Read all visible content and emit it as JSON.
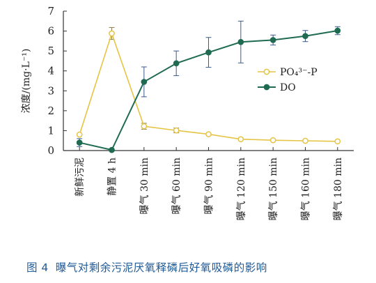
{
  "chart_data": {
    "type": "line",
    "ylabel": "浓度/(mg·L⁻¹)",
    "xlabel": "",
    "ylim": [
      0,
      7
    ],
    "yticks": [
      0,
      1,
      2,
      3,
      4,
      5,
      6,
      7
    ],
    "grid": false,
    "legend_position": "middle-right",
    "categories": [
      "新鲜污泥",
      "静置 4 h",
      "曝气 30 min",
      "曝气 60 min",
      "曝气 90 min",
      "曝气 120 min",
      "曝气 150 min",
      "曝气 160 min",
      "曝气 180 min"
    ],
    "series": [
      {
        "name": "PO₄³⁻-P",
        "color": "#e6c443",
        "marker": "open-circle",
        "values": [
          0.8,
          5.88,
          1.22,
          1.01,
          0.82,
          0.57,
          0.52,
          0.49,
          0.46
        ],
        "errors": [
          0,
          0.3,
          0.15,
          0.12,
          0,
          0,
          0,
          0,
          0
        ]
      },
      {
        "name": "DO",
        "color": "#1f6b52",
        "marker": "filled-circle",
        "values": [
          0.4,
          0.03,
          3.45,
          4.38,
          4.93,
          5.45,
          5.55,
          5.75,
          6.02
        ],
        "errors": [
          0.2,
          0,
          0.75,
          0.62,
          0.75,
          1.05,
          0.25,
          0.28,
          0.2
        ]
      }
    ]
  },
  "caption": {
    "label": "图 4",
    "text": "曝气对剩余污泥厌氧释磷后好氧吸磷的影响"
  }
}
